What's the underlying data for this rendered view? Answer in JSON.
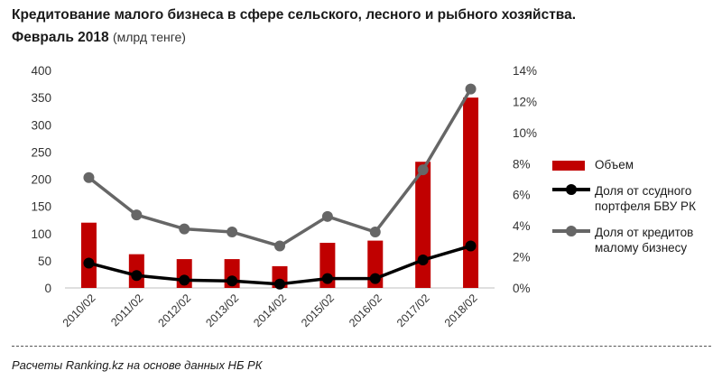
{
  "header": {
    "title": "Кредитование малого бизнеса в сфере сельского, лесного и рыбного хозяйства.",
    "subtitle_bold": "Февраль 2018",
    "subtitle_unit": "(млрд тенге)"
  },
  "footer": {
    "source": "Расчеты Ranking.kz на основе данных НБ РК"
  },
  "colors": {
    "bar": "#c00000",
    "line_portfolio": "#000000",
    "line_sme": "#666666"
  },
  "chart_data": {
    "type": "bar+line",
    "title": "Кредитование малого бизнеса в сфере сельского, лесного и рыбного хозяйства. Февраль 2018",
    "categories": [
      "2010/02",
      "2011/02",
      "2012/02",
      "2013/02",
      "2014/02",
      "2015/02",
      "2016/02",
      "2017/02",
      "2018/02"
    ],
    "y_left": {
      "min": 0,
      "max": 400,
      "step": 50,
      "ticks": [
        "0",
        "50",
        "100",
        "150",
        "200",
        "250",
        "300",
        "350",
        "400"
      ]
    },
    "y_right": {
      "min": 0,
      "max": 14,
      "step": 2,
      "ticks": [
        "0%",
        "2%",
        "4%",
        "6%",
        "8%",
        "10%",
        "12%",
        "14%"
      ]
    },
    "series": [
      {
        "name": "Объем",
        "kind": "bar",
        "axis": "left",
        "values": [
          120,
          62,
          53,
          53,
          40,
          83,
          87,
          232,
          350
        ]
      },
      {
        "name": "Доля от ссудного портфеля БВУ РК",
        "kind": "line",
        "axis": "right",
        "values": [
          1.6,
          0.8,
          0.5,
          0.45,
          0.25,
          0.6,
          0.6,
          1.8,
          2.7
        ]
      },
      {
        "name": "Доля от кредитов малому бизнесу",
        "kind": "line",
        "axis": "right",
        "values": [
          7.1,
          4.7,
          3.8,
          3.6,
          2.7,
          4.6,
          3.6,
          7.6,
          12.8
        ]
      }
    ],
    "legend_position": "right",
    "grid": false
  }
}
